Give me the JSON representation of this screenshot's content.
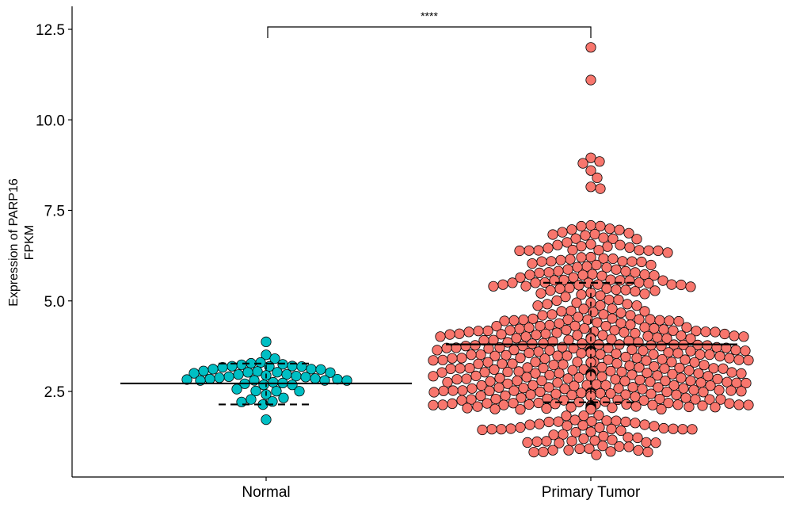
{
  "chart_data": {
    "type": "beeswarm",
    "ylabel_line1": "Expression of PARP16",
    "ylabel_line2": "FPKM",
    "xlabel": "",
    "ylim": [
      0.5,
      13.2
    ],
    "y_ticks": [
      2.5,
      5.0,
      7.5,
      10.0,
      12.5
    ],
    "y_tick_labels": [
      "2.5",
      "5.0",
      "7.5",
      "10.0",
      "12.5"
    ],
    "grid": false,
    "legend": "none",
    "significance_label": "****",
    "groups": [
      {
        "name": "Normal",
        "color": "#00BFC4",
        "n": 50,
        "min": 1.72,
        "max": 3.87,
        "median": 2.72,
        "q1": 2.14,
        "q3": 3.27
      },
      {
        "name": "Primary Tumor",
        "color": "#F8766D",
        "n": 520,
        "min": 0.75,
        "max": 12.0,
        "median": 3.8,
        "q1": 2.2,
        "q3": 5.5,
        "outliers": [
          12.0,
          11.1,
          8.95,
          8.85,
          8.8,
          8.6,
          8.4,
          8.15,
          8.1
        ]
      }
    ]
  }
}
